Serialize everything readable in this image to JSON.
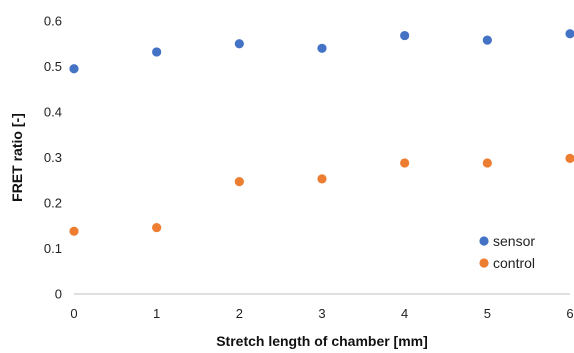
{
  "chart_data": {
    "type": "scatter",
    "xlabel": "Stretch length of chamber [mm]",
    "ylabel": "FRET ratio [-]",
    "xlim": [
      0,
      6
    ],
    "ylim": [
      0,
      0.6
    ],
    "xticks": [
      "0",
      "1",
      "2",
      "3",
      "4",
      "5",
      "6"
    ],
    "yticks": [
      "0",
      "0.1",
      "0.2",
      "0.3",
      "0.4",
      "0.5",
      "0.6"
    ],
    "grid": false,
    "legend_position": "bottom-right",
    "series": [
      {
        "name": "sensor",
        "color": "#4472c4",
        "x": [
          0,
          1,
          2,
          3,
          4,
          5,
          6
        ],
        "y": [
          0.495,
          0.532,
          0.55,
          0.54,
          0.568,
          0.558,
          0.572
        ]
      },
      {
        "name": "control",
        "color": "#ed7d31",
        "x": [
          0,
          1,
          2,
          3,
          4,
          5,
          6
        ],
        "y": [
          0.138,
          0.146,
          0.247,
          0.253,
          0.288,
          0.288,
          0.298
        ]
      }
    ]
  }
}
